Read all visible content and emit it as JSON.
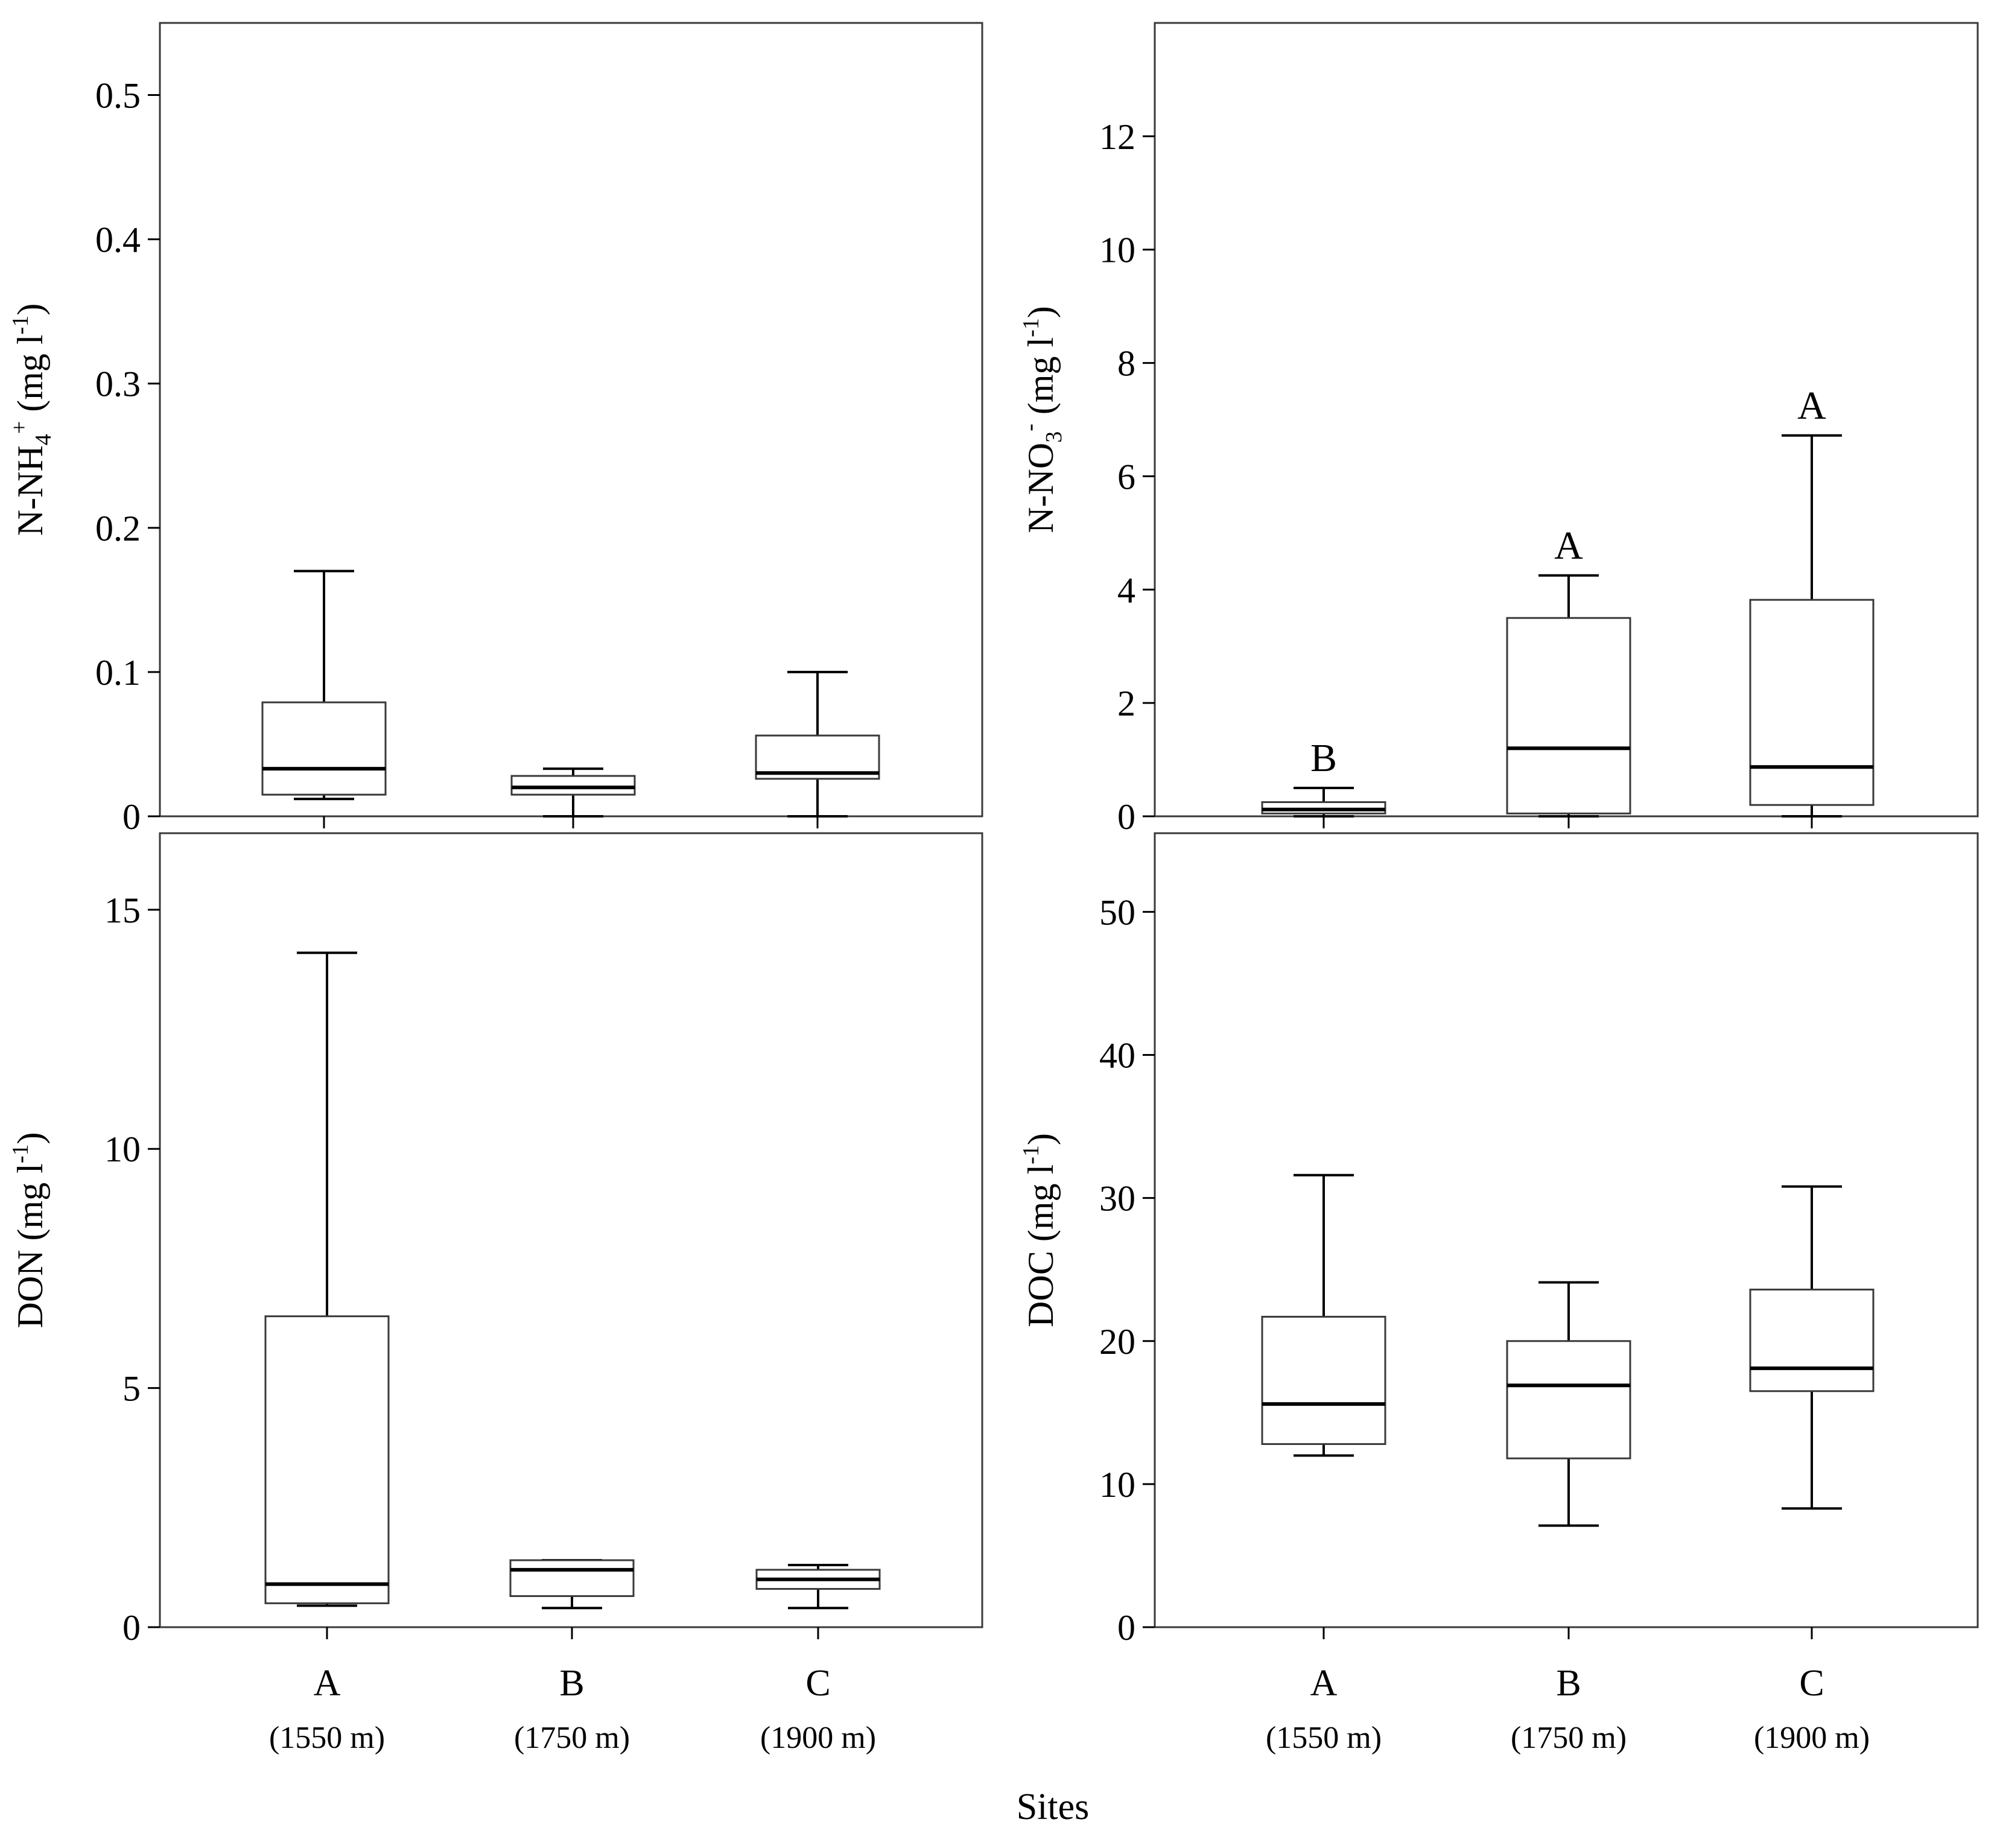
{
  "figure": {
    "x_title": "Sites",
    "groups": [
      "A",
      "B",
      "C"
    ],
    "group_elevations": [
      "(1550 m)",
      "(1750 m)",
      "(1900 m)"
    ]
  },
  "chart_data": [
    {
      "id": "nh4",
      "type": "boxplot",
      "ylabel": {
        "main": "N-NH",
        "sub": "4",
        "sup": "+",
        "unit": "(mg l",
        "unit_sup": "-1",
        "unit_close": ")"
      },
      "ylim": [
        0,
        0.55
      ],
      "yticks": [
        0,
        0.1,
        0.2,
        0.3,
        0.4,
        0.5
      ],
      "ytick_labels": [
        "0",
        "0.1",
        "0.2",
        "0.3",
        "0.4",
        "0.5"
      ],
      "show_xlabels": false,
      "boxes": [
        {
          "group": "A",
          "min": 0.012,
          "q1": 0.015,
          "median": 0.033,
          "q3": 0.079,
          "max": 0.17,
          "letter": ""
        },
        {
          "group": "B",
          "min": 0.0,
          "q1": 0.015,
          "median": 0.02,
          "q3": 0.028,
          "max": 0.033,
          "letter": ""
        },
        {
          "group": "C",
          "min": 0.0,
          "q1": 0.026,
          "median": 0.03,
          "q3": 0.056,
          "max": 0.1,
          "letter": ""
        }
      ]
    },
    {
      "id": "no3",
      "type": "boxplot",
      "ylabel": {
        "main": "N-NO",
        "sub": "3",
        "sup": "-",
        "unit": "(mg l",
        "unit_sup": "-1",
        "unit_close": ")"
      },
      "ylim": [
        0,
        14
      ],
      "yticks": [
        0,
        2,
        4,
        6,
        8,
        10,
        12
      ],
      "ytick_labels": [
        "0",
        "2",
        "4",
        "6",
        "8",
        "10",
        "12"
      ],
      "show_xlabels": false,
      "boxes": [
        {
          "group": "A",
          "min": 0.0,
          "q1": 0.05,
          "median": 0.12,
          "q3": 0.25,
          "max": 0.5,
          "letter": "B"
        },
        {
          "group": "B",
          "min": 0.0,
          "q1": 0.05,
          "median": 1.2,
          "q3": 3.5,
          "max": 4.25,
          "letter": "A"
        },
        {
          "group": "C",
          "min": 0.0,
          "q1": 0.2,
          "median": 0.87,
          "q3": 3.82,
          "max": 6.72,
          "letter": "A"
        }
      ]
    },
    {
      "id": "don",
      "type": "boxplot",
      "ylabel": {
        "main": "DON",
        "sub": "",
        "sup": "",
        "unit": "(mg l",
        "unit_sup": "-1",
        "unit_close": ")"
      },
      "ylim": [
        0,
        16.6
      ],
      "yticks": [
        0,
        5,
        10,
        15
      ],
      "ytick_labels": [
        "0",
        "5",
        "10",
        "15"
      ],
      "show_xlabels": true,
      "boxes": [
        {
          "group": "A",
          "min": 0.45,
          "q1": 0.5,
          "median": 0.9,
          "q3": 6.5,
          "max": 14.1,
          "letter": ""
        },
        {
          "group": "B",
          "min": 0.4,
          "q1": 0.65,
          "median": 1.2,
          "q3": 1.4,
          "max": 1.4,
          "letter": ""
        },
        {
          "group": "C",
          "min": 0.4,
          "q1": 0.8,
          "median": 1.0,
          "q3": 1.2,
          "max": 1.3,
          "letter": ""
        }
      ]
    },
    {
      "id": "doc",
      "type": "boxplot",
      "ylabel": {
        "main": "DOC",
        "sub": "",
        "sup": "",
        "unit": "(mg l",
        "unit_sup": "-1",
        "unit_close": ")"
      },
      "ylim": [
        0,
        55.5
      ],
      "yticks": [
        0,
        10,
        20,
        30,
        40,
        50
      ],
      "ytick_labels": [
        "0",
        "10",
        "20",
        "30",
        "40",
        "50"
      ],
      "show_xlabels": true,
      "boxes": [
        {
          "group": "A",
          "min": 12.0,
          "q1": 12.8,
          "median": 15.6,
          "q3": 21.7,
          "max": 31.6,
          "letter": ""
        },
        {
          "group": "B",
          "min": 7.1,
          "q1": 11.8,
          "median": 16.9,
          "q3": 20.0,
          "max": 24.1,
          "letter": ""
        },
        {
          "group": "C",
          "min": 8.3,
          "q1": 16.5,
          "median": 18.1,
          "q3": 23.6,
          "max": 30.8,
          "letter": ""
        }
      ]
    }
  ]
}
